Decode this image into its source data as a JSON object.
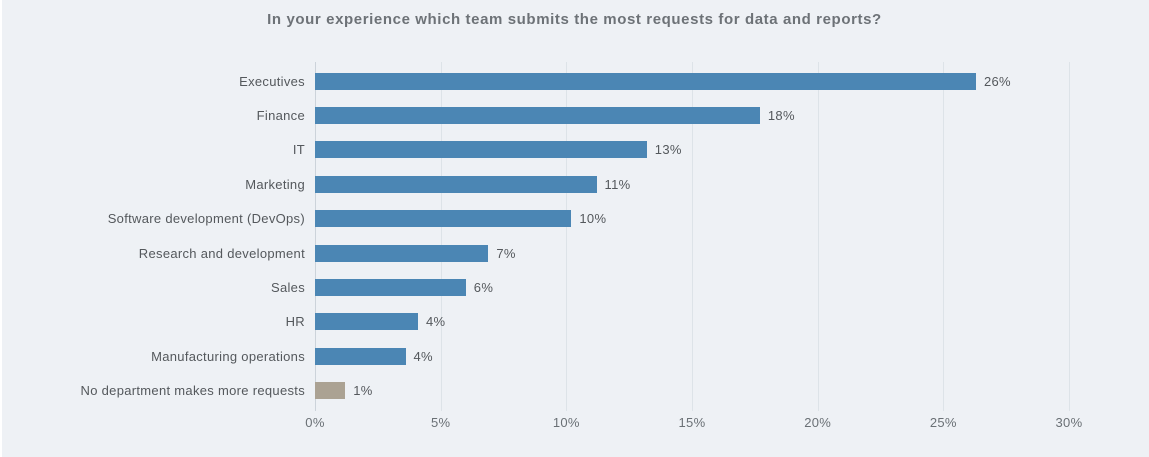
{
  "page": {
    "background_color": "#eef1f5"
  },
  "chart_data": {
    "type": "bar",
    "orientation": "horizontal",
    "title": "In your experience which team submits the most requests for data and reports?",
    "categories": [
      "Executives",
      "Finance",
      "IT",
      "Marketing",
      "Software development (DevOps)",
      "Research and development",
      "Sales",
      "HR",
      "Manufacturing operations",
      "No department makes more requests"
    ],
    "values": [
      26,
      18,
      13,
      11,
      10,
      7,
      6,
      4,
      4,
      1
    ],
    "value_labels": [
      "26%",
      "18%",
      "13%",
      "11%",
      "10%",
      "7%",
      "6%",
      "4%",
      "4%",
      "1%"
    ],
    "bar_render_values": [
      26.3,
      17.7,
      13.2,
      11.2,
      10.2,
      6.9,
      6.0,
      4.1,
      3.6,
      1.2
    ],
    "xlabel": "",
    "ylabel": "",
    "xlim": [
      0,
      30
    ],
    "x_ticks": [
      "0%",
      "5%",
      "10%",
      "15%",
      "20%",
      "25%",
      "30%"
    ],
    "grid": "vertical-only",
    "legend": "none",
    "colors": {
      "bar": "#4b86b4",
      "last_bar": "#aba293",
      "gridline": "#dde3e8",
      "title_text": "#6d7277",
      "label_text": "#54585c",
      "tick_text": "#6a7075"
    }
  }
}
